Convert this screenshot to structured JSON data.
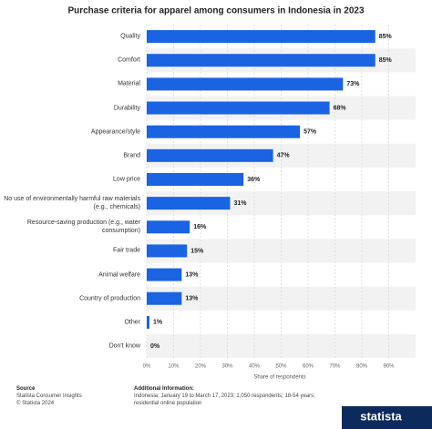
{
  "chart_data": {
    "type": "hbar",
    "title": "Purchase criteria for apparel among consumers in Indonesia in 2023",
    "categories": [
      "Quality",
      "Comfort",
      "Material",
      "Durability",
      "Appearance/style",
      "Brand",
      "Low price",
      "No use of environmentally harmful raw materials (e.g., chemicals)",
      "Resource-saving production (e.g., water consumption)",
      "Fair trade",
      "Animal welfare",
      "Country of production",
      "Other",
      "Don't know"
    ],
    "values": [
      85,
      85,
      73,
      68,
      57,
      47,
      36,
      31,
      16,
      15,
      13,
      13,
      1,
      0
    ],
    "value_labels": [
      "85%",
      "85%",
      "73%",
      "68%",
      "57%",
      "47%",
      "36%",
      "31%",
      "16%",
      "15%",
      "13%",
      "13%",
      "1%",
      "0%"
    ],
    "color": "#1a63e3",
    "xlim": [
      0,
      100
    ],
    "xticks": [
      {
        "value": 0,
        "label": "0%"
      },
      {
        "value": 10,
        "label": "10%"
      },
      {
        "value": 20,
        "label": "20%"
      },
      {
        "value": 30,
        "label": "30%"
      },
      {
        "value": 40,
        "label": "40%"
      },
      {
        "value": 50,
        "label": "50%"
      },
      {
        "value": 60,
        "label": "60%"
      },
      {
        "value": 70,
        "label": "70%"
      },
      {
        "value": 80,
        "label": "80%"
      },
      {
        "value": 90,
        "label": "90%"
      }
    ],
    "xlabel": "Share of respondents",
    "grid": true
  },
  "footer": {
    "source_title": "Source",
    "source": "Statista Consumer Insights",
    "copyright": "© Statista 2024",
    "info_title": "Additional Information:",
    "info": "Indonesia; January 19 to March 17, 2023; 1,050 respondents; 18-54 years; residential online population",
    "logo": "statista"
  }
}
